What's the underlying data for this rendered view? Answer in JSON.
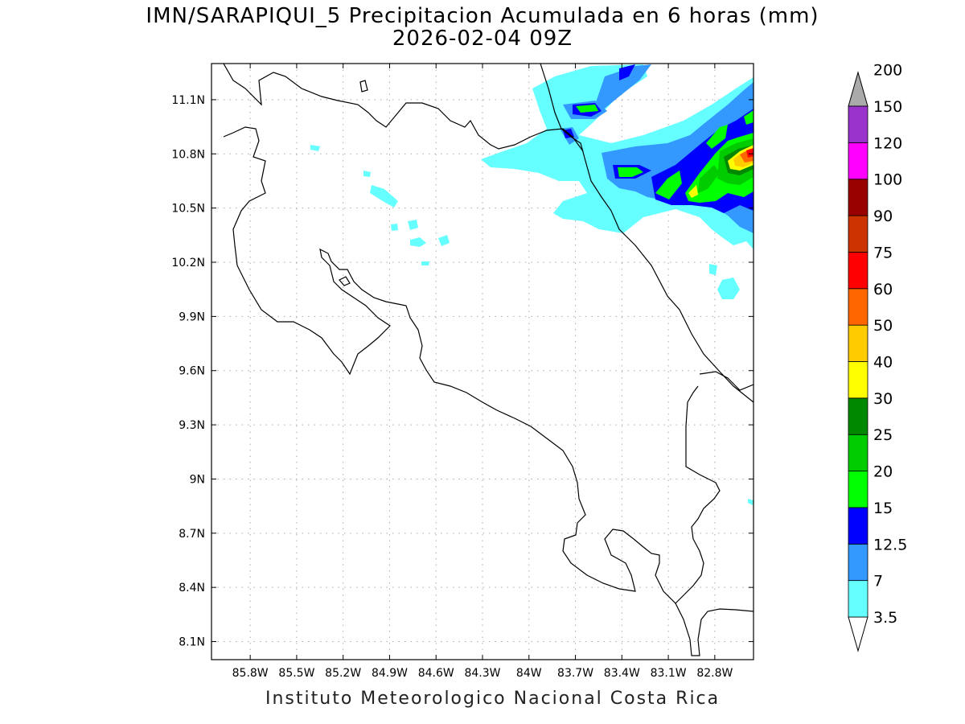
{
  "title": {
    "line1": "IMN/SARAPIQUI_5 Precipitacion Acumulada en 6 horas (mm)",
    "line2": "2026-02-04 09Z"
  },
  "footer": "Instituto Meteorologico Nacional Costa Rica",
  "map": {
    "lon_range": [
      -86.05,
      -82.55
    ],
    "lat_range": [
      8.0,
      11.3
    ],
    "lon_ticks": [
      {
        "value": -85.8,
        "label": "85.8W"
      },
      {
        "value": -85.5,
        "label": "85.5W"
      },
      {
        "value": -85.2,
        "label": "85.2W"
      },
      {
        "value": -84.9,
        "label": "84.9W"
      },
      {
        "value": -84.6,
        "label": "84.6W"
      },
      {
        "value": -84.3,
        "label": "84.3W"
      },
      {
        "value": -84.0,
        "label": "84W"
      },
      {
        "value": -83.7,
        "label": "83.7W"
      },
      {
        "value": -83.4,
        "label": "83.4W"
      },
      {
        "value": -83.1,
        "label": "83.1W"
      },
      {
        "value": -82.8,
        "label": "82.8W"
      }
    ],
    "lat_ticks": [
      {
        "value": 11.1,
        "label": "11.1N"
      },
      {
        "value": 10.8,
        "label": "10.8N"
      },
      {
        "value": 10.5,
        "label": "10.5N"
      },
      {
        "value": 10.2,
        "label": "10.2N"
      },
      {
        "value": 9.9,
        "label": "9.9N"
      },
      {
        "value": 9.6,
        "label": "9.6N"
      },
      {
        "value": 9.3,
        "label": "9.3N"
      },
      {
        "value": 9.0,
        "label": "9N"
      },
      {
        "value": 8.7,
        "label": "8.7N"
      },
      {
        "value": 8.4,
        "label": "8.4N"
      },
      {
        "value": 8.1,
        "label": "8.1N"
      }
    ],
    "grid": true
  },
  "colorbar": {
    "bins": [
      {
        "label": "3.5",
        "color": "#66ffff"
      },
      {
        "label": "7",
        "color": "#3399ff"
      },
      {
        "label": "12.5",
        "color": "#0000ff"
      },
      {
        "label": "15",
        "color": "#00ff00"
      },
      {
        "label": "20",
        "color": "#00cc00"
      },
      {
        "label": "25",
        "color": "#008800"
      },
      {
        "label": "30",
        "color": "#ffff00"
      },
      {
        "label": "40",
        "color": "#ffcc00"
      },
      {
        "label": "50",
        "color": "#ff6600"
      },
      {
        "label": "60",
        "color": "#ff0000"
      },
      {
        "label": "75",
        "color": "#cc3300"
      },
      {
        "label": "90",
        "color": "#990000"
      },
      {
        "label": "100",
        "color": "#ff00ff"
      },
      {
        "label": "120",
        "color": "#9933cc"
      },
      {
        "label": "150",
        "color": "#f5f5f5"
      },
      {
        "label": "200",
        "color": "#aaaaaa"
      }
    ]
  }
}
